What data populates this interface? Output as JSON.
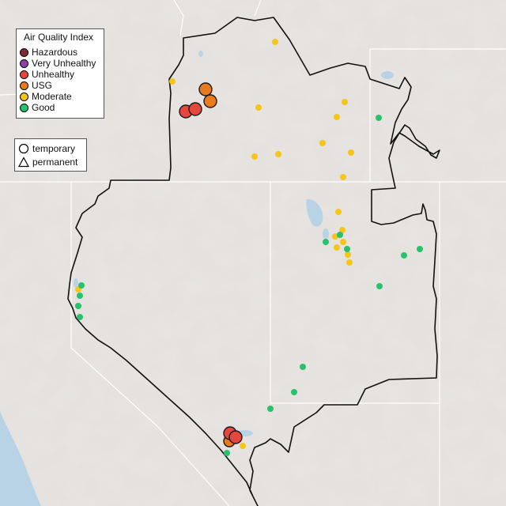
{
  "aqi_legend": {
    "title": "Air Quality Index",
    "categories": [
      {
        "label": "Hazardous",
        "color": "#7e2b33"
      },
      {
        "label": "Very Unhealthy",
        "color": "#8b42a8"
      },
      {
        "label": "Unhealthy",
        "color": "#e5473f"
      },
      {
        "label": "USG",
        "color": "#ea7b1d"
      },
      {
        "label": "Moderate",
        "color": "#f5c518"
      },
      {
        "label": "Good",
        "color": "#27c26b"
      }
    ]
  },
  "shape_legend": {
    "temporary_label": "temporary",
    "permanent_label": "permanent"
  },
  "colors": {
    "land": "#e4e1de",
    "border": "#111111",
    "state_lines": "#ffffff",
    "water": "#b9d3e6"
  }
}
